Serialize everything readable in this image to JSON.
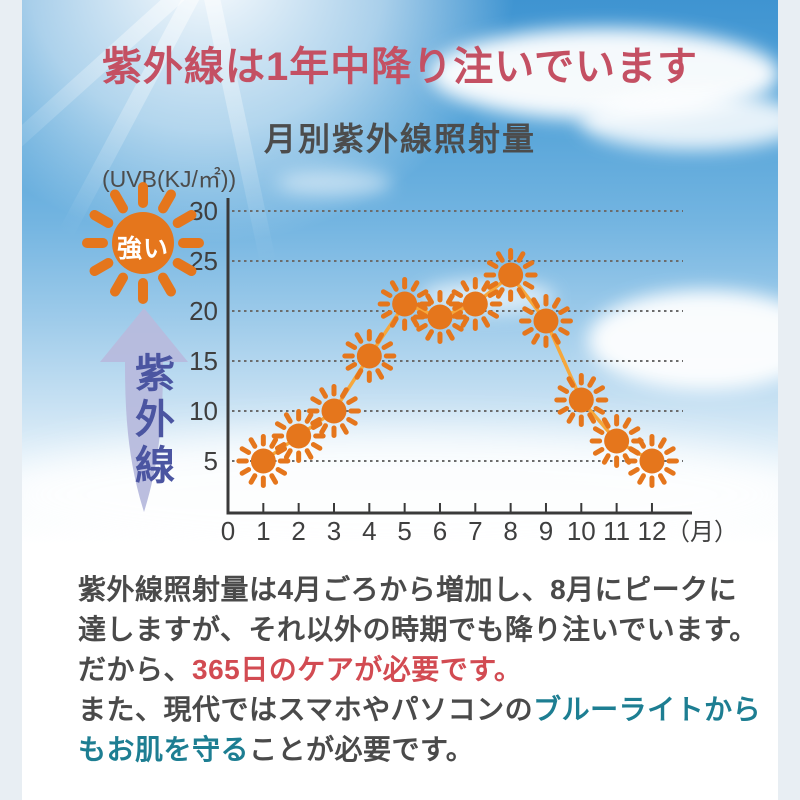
{
  "header": {
    "title": "紫外線は1年中降り注いでいます",
    "color": "#c45063"
  },
  "chart": {
    "title": "月別紫外線照射量",
    "unit_label": "(UVB(KJ/㎡))",
    "x_axis_suffix": "（月）"
  },
  "left_graphics": {
    "sun_label": "強い",
    "arrow_label": "紫外線",
    "sun_color": "#e8781e",
    "arrow_color": "#b7badd",
    "arrow_text_color": "#4b55a1"
  },
  "chart_data": {
    "type": "line",
    "title": "月別紫外線照射量",
    "ylabel": "(UVB(KJ/㎡))",
    "xlabel": "（月）",
    "categories": [
      1,
      2,
      3,
      4,
      5,
      6,
      7,
      8,
      9,
      10,
      11,
      12
    ],
    "values": [
      5,
      7.5,
      10,
      15.5,
      20.7,
      19.4,
      20.7,
      23.6,
      19,
      11.1,
      7,
      5
    ],
    "x_ticks": [
      0,
      1,
      2,
      3,
      4,
      5,
      6,
      7,
      8,
      9,
      10,
      11,
      12
    ],
    "y_ticks": [
      5,
      10,
      15,
      20,
      25,
      30
    ],
    "ylim": [
      0,
      32
    ],
    "grid": "horizontal-dotted",
    "legend": "none",
    "marker": "sun-icon",
    "line_color": "#f6a73b",
    "marker_color": "#e5761c",
    "axis_color": "#3a3a3a",
    "grid_color": "#6b6b6b",
    "tick_label_color": "#3f3f3f"
  },
  "description": {
    "colors": {
      "default": "#4a4a4a",
      "red": "#d24b52",
      "teal": "#1d7e92"
    },
    "lines": [
      [
        {
          "text": "紫外線照射量は4月ごろから増加し、8月にピークに",
          "color": "default"
        }
      ],
      [
        {
          "text": "達しますが、それ以外の時期でも降り注いでいます。",
          "color": "default"
        }
      ],
      [
        {
          "text": "だから、",
          "color": "default"
        },
        {
          "text": "365日のケアが必要です。",
          "color": "red"
        }
      ],
      [
        {
          "text": "また、現代ではスマホやパソコンの",
          "color": "default"
        },
        {
          "text": "ブルーライトから",
          "color": "teal"
        }
      ],
      [
        {
          "text": "もお肌を守る",
          "color": "teal"
        },
        {
          "text": "ことが必要です。",
          "color": "default"
        }
      ]
    ]
  }
}
